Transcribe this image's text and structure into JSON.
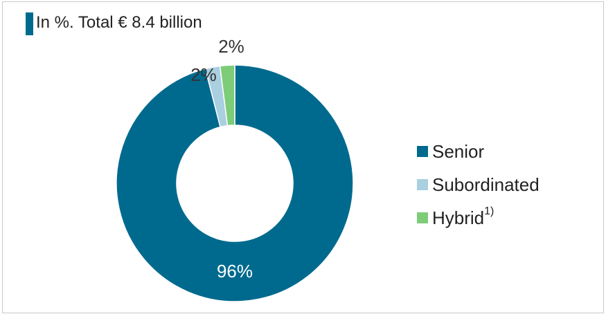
{
  "title": "In %. Total € 8.4 billion",
  "colors": {
    "title_bar": "#006a8e"
  },
  "chart_data": {
    "type": "pie",
    "donut": true,
    "title": "In %. Total € 8.4 billion",
    "slices": [
      {
        "label": "Senior",
        "value": 96,
        "display": "96%",
        "color": "#006a8e"
      },
      {
        "label": "Subordinated",
        "value": 2,
        "display": "2%",
        "color": "#a9cfe0"
      },
      {
        "label": "Hybrid",
        "footnote": "1)",
        "value": 2,
        "display": "2%",
        "color": "#7ccc78"
      }
    ],
    "legend_position": "right"
  }
}
